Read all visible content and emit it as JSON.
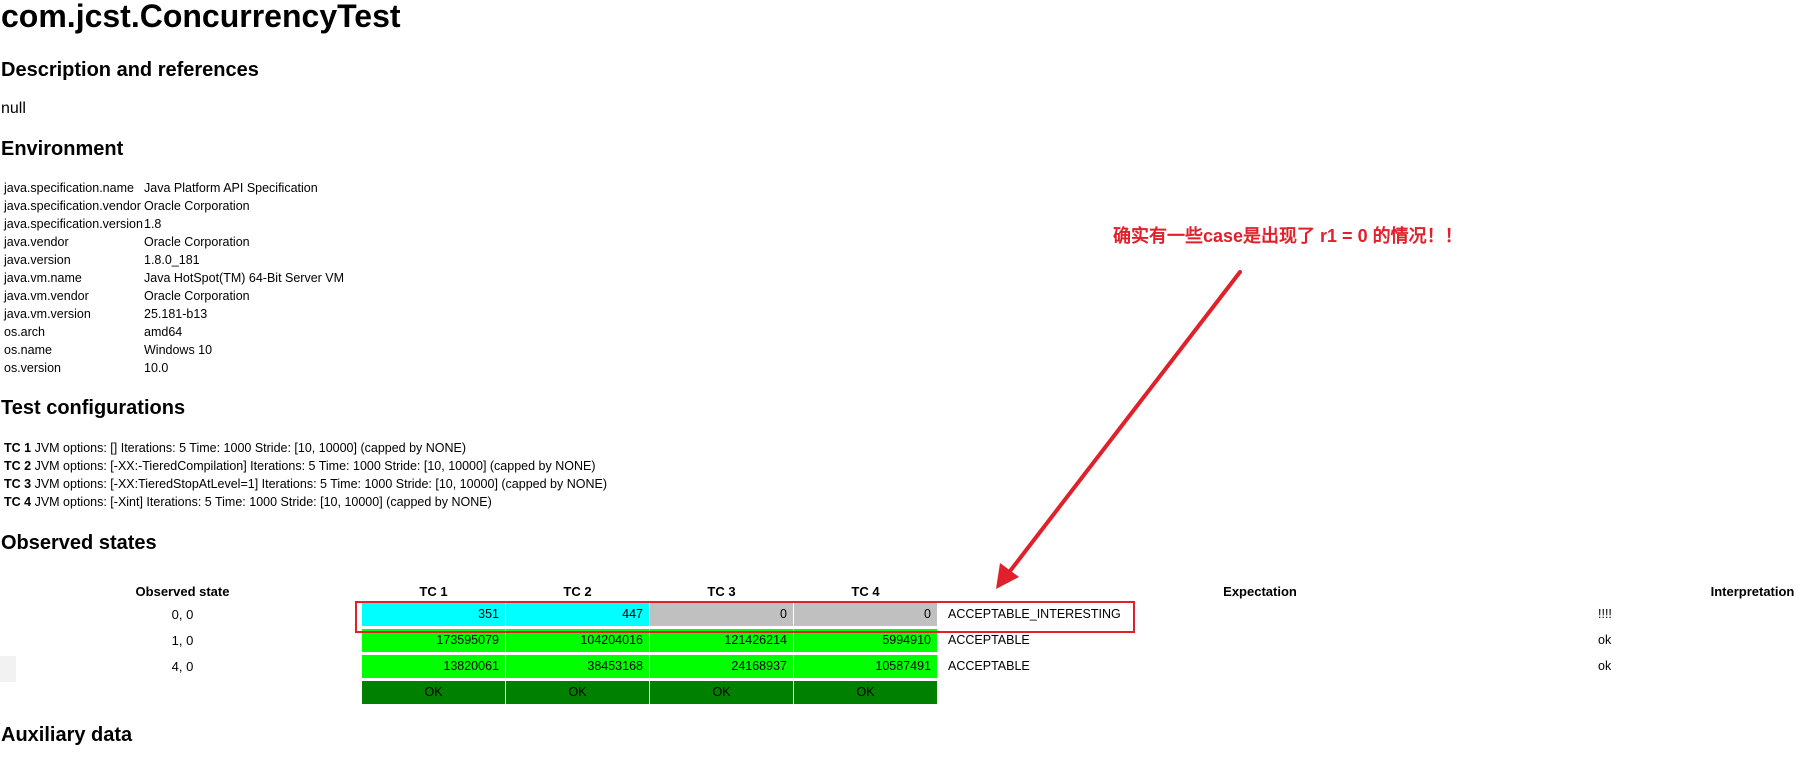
{
  "title": "com.jcst.ConcurrencyTest",
  "sections": {
    "description": "Description and references",
    "environment": "Environment",
    "test_config": "Test configurations",
    "observed": "Observed states",
    "auxiliary": "Auxiliary data"
  },
  "description_text": "null",
  "environment": [
    {
      "key": "java.specification.name",
      "value": "Java Platform API Specification"
    },
    {
      "key": "java.specification.vendor",
      "value": "Oracle Corporation"
    },
    {
      "key": "java.specification.version",
      "value": "1.8"
    },
    {
      "key": "java.vendor",
      "value": "Oracle Corporation"
    },
    {
      "key": "java.version",
      "value": "1.8.0_181"
    },
    {
      "key": "java.vm.name",
      "value": "Java HotSpot(TM) 64-Bit Server VM"
    },
    {
      "key": "java.vm.vendor",
      "value": "Oracle Corporation"
    },
    {
      "key": "java.vm.version",
      "value": "25.181-b13"
    },
    {
      "key": "os.arch",
      "value": "amd64"
    },
    {
      "key": "os.name",
      "value": "Windows 10"
    },
    {
      "key": "os.version",
      "value": "10.0"
    }
  ],
  "test_configs": [
    {
      "id": "TC 1",
      "text": "JVM options: [] Iterations: 5 Time: 1000 Stride: [10, 10000] (capped by NONE)"
    },
    {
      "id": "TC 2",
      "text": "JVM options: [-XX:-TieredCompilation] Iterations: 5 Time: 1000 Stride: [10, 10000] (capped by NONE)"
    },
    {
      "id": "TC 3",
      "text": "JVM options: [-XX:TieredStopAtLevel=1] Iterations: 5 Time: 1000 Stride: [10, 10000] (capped by NONE)"
    },
    {
      "id": "TC 4",
      "text": "JVM options: [-Xint] Iterations: 5 Time: 1000 Stride: [10, 10000] (capped by NONE)"
    }
  ],
  "table": {
    "headers": {
      "state": "Observed state",
      "tc1": "TC 1",
      "tc2": "TC 2",
      "tc3": "TC 3",
      "tc4": "TC 4",
      "expectation": "Expectation",
      "interpretation": "Interpretation"
    },
    "rows": [
      {
        "state": "0, 0",
        "tc": [
          "351",
          "447",
          "0",
          "0"
        ],
        "expectation": "ACCEPTABLE_INTERESTING",
        "interpretation": "!!!!"
      },
      {
        "state": "1, 0",
        "tc": [
          "173595079",
          "104204016",
          "121426214",
          "5994910"
        ],
        "expectation": "ACCEPTABLE",
        "interpretation": "ok"
      },
      {
        "state": "4, 0",
        "tc": [
          "13820061",
          "38453168",
          "24168937",
          "10587491"
        ],
        "expectation": "ACCEPTABLE",
        "interpretation": "ok"
      }
    ],
    "status": [
      "OK",
      "OK",
      "OK",
      "OK"
    ]
  },
  "annotation": "确实有一些case是出现了 r1 = 0 的情况！！",
  "colors": {
    "interesting": "#00ffff",
    "zero": "#c0c0c0",
    "acceptable": "#00ff00",
    "ok": "#008000",
    "annotation": "#e0202a"
  }
}
